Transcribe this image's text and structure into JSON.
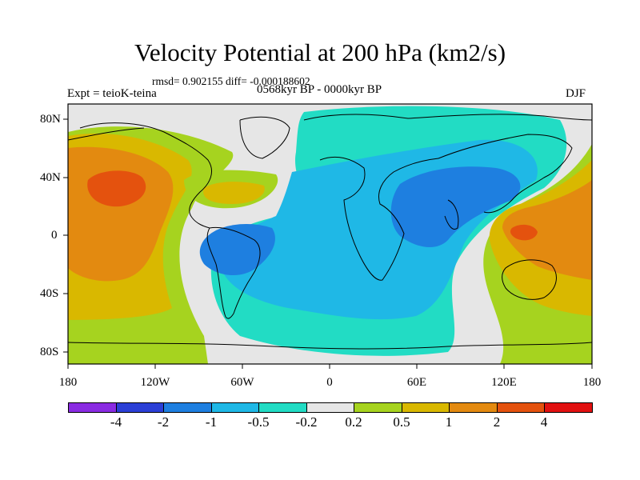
{
  "figure": {
    "title": "Velocity Potential at 200 hPa (km2/s)",
    "stats": "rmsd= 0.902155 diff= -0.000188602",
    "period": "0568kyr BP - 0000kyr BP",
    "experiment": "Expt = teioK-teina",
    "season": "DJF"
  },
  "map": {
    "lat_labels": [
      "80N",
      "40N",
      "0",
      "40S",
      "80S"
    ],
    "lon_labels": [
      "180",
      "120W",
      "60W",
      "0",
      "60E",
      "120E",
      "180"
    ]
  },
  "colorbar": {
    "labels": [
      "-4",
      "-2",
      "-1",
      "-0.5",
      "-0.2",
      "0.2",
      "0.5",
      "1",
      "2",
      "4"
    ],
    "colors": [
      "#8a2be2",
      "#2b3fd6",
      "#1e7fe0",
      "#1fb8e6",
      "#22dcc4",
      "#e6e6e6",
      "#a6d31f",
      "#d9b800",
      "#e38a10",
      "#e4520e",
      "#e11010"
    ]
  }
}
